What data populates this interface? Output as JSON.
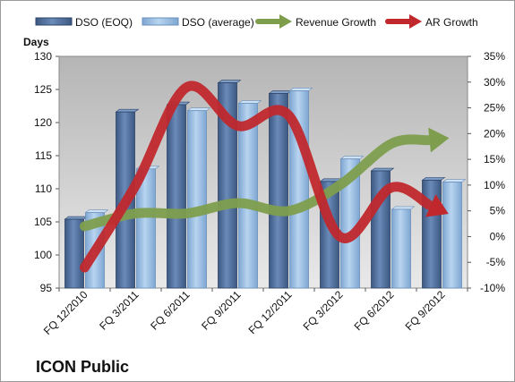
{
  "chart_data": {
    "type": "bar",
    "title": "ICON Public",
    "ylabel": "Days",
    "ylim": [
      95,
      130
    ],
    "y_ticks": [
      "95",
      "100",
      "105",
      "110",
      "115",
      "120",
      "125",
      "130"
    ],
    "y2lim": [
      -10,
      35
    ],
    "y2_ticks": [
      "-10%",
      "-5%",
      "0%",
      "5%",
      "10%",
      "15%",
      "20%",
      "25%",
      "30%",
      "35%"
    ],
    "categories": [
      "FQ 12/2010",
      "FQ 3/2011",
      "FQ 6/2011",
      "FQ 9/2011",
      "FQ 12/2011",
      "FQ 3/2012",
      "FQ 6/2012",
      "FQ 9/2012"
    ],
    "series": [
      {
        "name": "DSO (EOQ)",
        "type": "bar",
        "axis": "left",
        "color": "#4F6E9E",
        "values": [
          105.4,
          121.6,
          122.7,
          126.0,
          124.4,
          111.1,
          112.7,
          111.3
        ]
      },
      {
        "name": "DSO (average)",
        "type": "bar",
        "axis": "left",
        "color": "#98BDE3",
        "values": [
          106.4,
          113.0,
          121.8,
          122.9,
          124.8,
          114.5,
          106.9,
          111.0
        ]
      },
      {
        "name": "Revenue Growth",
        "type": "line",
        "axis": "right",
        "color": "#7E9E4E",
        "values": [
          2,
          4.5,
          4.5,
          6.5,
          5,
          10,
          18,
          19
        ]
      },
      {
        "name": "AR Growth",
        "type": "line",
        "axis": "right",
        "color": "#C0282D",
        "values": [
          -6,
          10,
          29,
          21.5,
          23.5,
          0,
          9.5,
          5
        ]
      }
    ],
    "legend_position": "top",
    "grid": false,
    "plot_background": "#C0C0C0"
  }
}
